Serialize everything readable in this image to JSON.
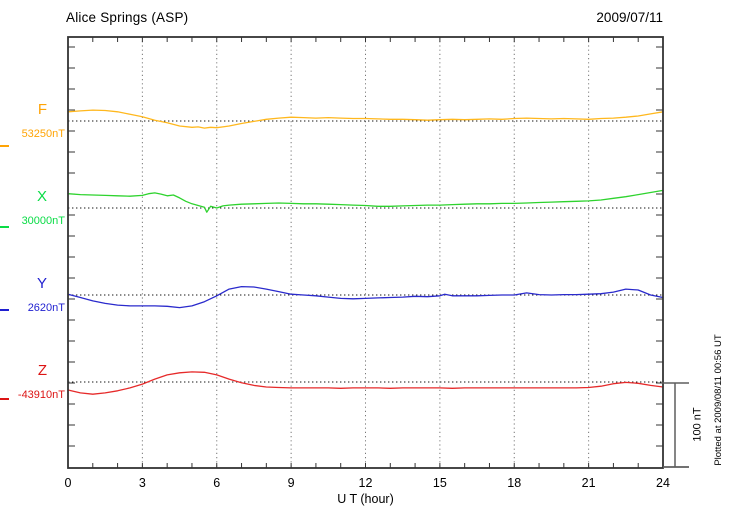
{
  "header": {
    "title": "Alice Springs (ASP)",
    "date": "2009/07/11"
  },
  "x_axis": {
    "label": "U T (hour)",
    "tick_label_hours": [
      0,
      3,
      6,
      9,
      12,
      15,
      18,
      21,
      24
    ],
    "gridline_hours": [
      3,
      6,
      9,
      12,
      15,
      18,
      21
    ],
    "minor_tick_every_hours": 1,
    "range_hours": [
      0,
      24
    ]
  },
  "scale_bar": {
    "label": "100 nT",
    "span_nT": 100
  },
  "side_note": "Plotted at 2009/08/11 00:56 UT",
  "colors": {
    "grid": "#777777",
    "baseline": "#151515",
    "axis": "#333333",
    "scalebar": "#5e5e5e",
    "text": "#000000",
    "f_trace": "#ffb81e",
    "f_label": "#ffa405",
    "x_trace": "#2ed32e",
    "x_label": "#0adc46",
    "y_trace": "#2a2acc",
    "y_label": "#1f1fd0",
    "z_trace": "#e62a2a",
    "z_label": "#dc1414"
  },
  "chart_data": {
    "type": "line",
    "title": "Alice Springs (ASP) magnetogram",
    "date": "2009/07/11",
    "xlabel": "U T (hour)",
    "x_range": [
      0,
      24
    ],
    "grid": "dotted vertical every 3 h, dotted horizontal baseline per channel",
    "legend_position": "left margin channel labels",
    "points_unit": "nT offset from channel baseline",
    "scale_nT_per_100px": 119,
    "series": [
      {
        "id": "F",
        "label": "F",
        "baseline_label": "53250nT",
        "baseline_nT": 53250,
        "unit": "nT",
        "color": "#ffb81e",
        "label_color": "#ffa405",
        "points": [
          [
            0,
            11
          ],
          [
            0.5,
            12
          ],
          [
            1,
            13
          ],
          [
            1.5,
            12.5
          ],
          [
            2,
            11
          ],
          [
            2.5,
            8
          ],
          [
            3,
            5
          ],
          [
            3.5,
            1
          ],
          [
            4,
            -2
          ],
          [
            4.5,
            -6
          ],
          [
            5,
            -7.5
          ],
          [
            5.25,
            -7
          ],
          [
            5.5,
            -8.5
          ],
          [
            5.75,
            -7.5
          ],
          [
            6,
            -8
          ],
          [
            6.25,
            -7
          ],
          [
            6.5,
            -6
          ],
          [
            7,
            -3
          ],
          [
            7.5,
            -0.5
          ],
          [
            8,
            2
          ],
          [
            8.5,
            3.5
          ],
          [
            9,
            4.5
          ],
          [
            9.5,
            4
          ],
          [
            10,
            3.5
          ],
          [
            10.5,
            4
          ],
          [
            11,
            3.5
          ],
          [
            11.5,
            3
          ],
          [
            12,
            3
          ],
          [
            12.5,
            2.5
          ],
          [
            13,
            2
          ],
          [
            13.5,
            2
          ],
          [
            14,
            1.5
          ],
          [
            14.5,
            1
          ],
          [
            15,
            1.5
          ],
          [
            15.5,
            2
          ],
          [
            16,
            1.5
          ],
          [
            16.5,
            2
          ],
          [
            17,
            2.5
          ],
          [
            17.5,
            2
          ],
          [
            18,
            3
          ],
          [
            18.5,
            3.5
          ],
          [
            19,
            3
          ],
          [
            19.5,
            2.5
          ],
          [
            20,
            3
          ],
          [
            20.5,
            2.5
          ],
          [
            21,
            2
          ],
          [
            21.5,
            3
          ],
          [
            22,
            3.5
          ],
          [
            22.5,
            4.5
          ],
          [
            23,
            6
          ],
          [
            23.5,
            8.5
          ],
          [
            24,
            11
          ]
        ]
      },
      {
        "id": "X",
        "label": "X",
        "baseline_label": "30000nT",
        "baseline_nT": 30000,
        "unit": "nT",
        "color": "#2ed32e",
        "label_color": "#0adc46",
        "points": [
          [
            0,
            17
          ],
          [
            0.5,
            16
          ],
          [
            1,
            15.5
          ],
          [
            1.5,
            15
          ],
          [
            2,
            14.5
          ],
          [
            2.5,
            14
          ],
          [
            3,
            15
          ],
          [
            3.25,
            17
          ],
          [
            3.5,
            18
          ],
          [
            3.75,
            16.5
          ],
          [
            4,
            14.5
          ],
          [
            4.25,
            15.5
          ],
          [
            4.5,
            12
          ],
          [
            4.75,
            8
          ],
          [
            5,
            5
          ],
          [
            5.25,
            3
          ],
          [
            5.5,
            1
          ],
          [
            5.6,
            -5
          ],
          [
            5.75,
            2
          ],
          [
            6,
            0
          ],
          [
            6.25,
            2.5
          ],
          [
            6.5,
            3.5
          ],
          [
            7,
            4.5
          ],
          [
            7.5,
            5
          ],
          [
            8,
            5.5
          ],
          [
            8.5,
            6
          ],
          [
            9,
            5.5
          ],
          [
            9.5,
            5
          ],
          [
            10,
            5
          ],
          [
            10.5,
            4.5
          ],
          [
            11,
            4
          ],
          [
            11.5,
            3.5
          ],
          [
            12,
            3
          ],
          [
            12.5,
            2
          ],
          [
            13,
            2
          ],
          [
            13.5,
            2.5
          ],
          [
            14,
            3
          ],
          [
            14.5,
            3.5
          ],
          [
            15,
            3.5
          ],
          [
            15.5,
            4
          ],
          [
            16,
            4.5
          ],
          [
            16.5,
            5
          ],
          [
            17,
            5
          ],
          [
            17.5,
            5.5
          ],
          [
            18,
            5.5
          ],
          [
            18.5,
            6
          ],
          [
            19,
            6.5
          ],
          [
            19.5,
            7
          ],
          [
            20,
            7.5
          ],
          [
            20.5,
            8
          ],
          [
            21,
            8.5
          ],
          [
            21.5,
            9.5
          ],
          [
            22,
            11.5
          ],
          [
            22.5,
            13.5
          ],
          [
            23,
            16
          ],
          [
            23.5,
            18.5
          ],
          [
            24,
            21
          ]
        ]
      },
      {
        "id": "Y",
        "label": "Y",
        "baseline_label": "2620nT",
        "baseline_nT": 2620,
        "unit": "nT",
        "color": "#2a2acc",
        "label_color": "#1f1fd0",
        "points": [
          [
            0,
            1
          ],
          [
            0.5,
            -3
          ],
          [
            1,
            -7
          ],
          [
            1.5,
            -10
          ],
          [
            2,
            -12
          ],
          [
            2.5,
            -13
          ],
          [
            3,
            -13
          ],
          [
            3.5,
            -13
          ],
          [
            4,
            -13.5
          ],
          [
            4.5,
            -15
          ],
          [
            5,
            -13
          ],
          [
            5.5,
            -8
          ],
          [
            6,
            -1
          ],
          [
            6.5,
            7
          ],
          [
            7,
            10
          ],
          [
            7.5,
            9.5
          ],
          [
            8,
            7
          ],
          [
            8.5,
            4
          ],
          [
            9,
            1
          ],
          [
            9.5,
            0
          ],
          [
            10,
            -1
          ],
          [
            10.5,
            -2.5
          ],
          [
            11,
            -4
          ],
          [
            11.5,
            -4.5
          ],
          [
            12,
            -4
          ],
          [
            12.5,
            -3.5
          ],
          [
            13,
            -3
          ],
          [
            13.5,
            -2.5
          ],
          [
            14,
            -1.5
          ],
          [
            14.5,
            -2
          ],
          [
            15,
            -1
          ],
          [
            15.2,
            1
          ],
          [
            15.5,
            -1
          ],
          [
            16,
            -1
          ],
          [
            16.5,
            -1
          ],
          [
            17,
            -0.5
          ],
          [
            17.5,
            0
          ],
          [
            18,
            0
          ],
          [
            18.5,
            2.5
          ],
          [
            19,
            0.5
          ],
          [
            19.5,
            0
          ],
          [
            20,
            0.5
          ],
          [
            20.5,
            0.5
          ],
          [
            21,
            1
          ],
          [
            21.5,
            1.5
          ],
          [
            22,
            3.5
          ],
          [
            22.5,
            7
          ],
          [
            23,
            6
          ],
          [
            23.5,
            0
          ],
          [
            24,
            -3
          ]
        ]
      },
      {
        "id": "Z",
        "label": "Z",
        "baseline_label": "-43910nT",
        "baseline_nT": -43910,
        "unit": "nT",
        "color": "#e62a2a",
        "label_color": "#dc1414",
        "points": [
          [
            0,
            -9.5
          ],
          [
            0.5,
            -13
          ],
          [
            1,
            -14.5
          ],
          [
            1.5,
            -13
          ],
          [
            2,
            -10.5
          ],
          [
            2.5,
            -7
          ],
          [
            3,
            -2.5
          ],
          [
            3.5,
            3.5
          ],
          [
            4,
            8.5
          ],
          [
            4.5,
            11
          ],
          [
            5,
            12
          ],
          [
            5.5,
            11.5
          ],
          [
            6,
            8.5
          ],
          [
            6.5,
            3.5
          ],
          [
            7,
            -1
          ],
          [
            7.5,
            -4
          ],
          [
            8,
            -6
          ],
          [
            8.5,
            -6.5
          ],
          [
            9,
            -7
          ],
          [
            9.5,
            -7
          ],
          [
            10,
            -7
          ],
          [
            10.5,
            -7
          ],
          [
            11,
            -7.5
          ],
          [
            11.5,
            -7
          ],
          [
            12,
            -7
          ],
          [
            12.5,
            -7
          ],
          [
            13,
            -7.5
          ],
          [
            13.5,
            -7
          ],
          [
            14,
            -7
          ],
          [
            14.5,
            -7
          ],
          [
            15,
            -7
          ],
          [
            15.5,
            -7.5
          ],
          [
            16,
            -7
          ],
          [
            16.5,
            -7
          ],
          [
            17,
            -7
          ],
          [
            17.5,
            -7
          ],
          [
            18,
            -7
          ],
          [
            18.5,
            -7
          ],
          [
            19,
            -7
          ],
          [
            19.5,
            -7
          ],
          [
            20,
            -7
          ],
          [
            20.5,
            -7
          ],
          [
            21,
            -6.5
          ],
          [
            21.5,
            -5
          ],
          [
            22,
            -2
          ],
          [
            22.5,
            -0.5
          ],
          [
            23,
            -1.5
          ],
          [
            23.5,
            -4
          ],
          [
            24,
            -6
          ]
        ]
      }
    ]
  }
}
